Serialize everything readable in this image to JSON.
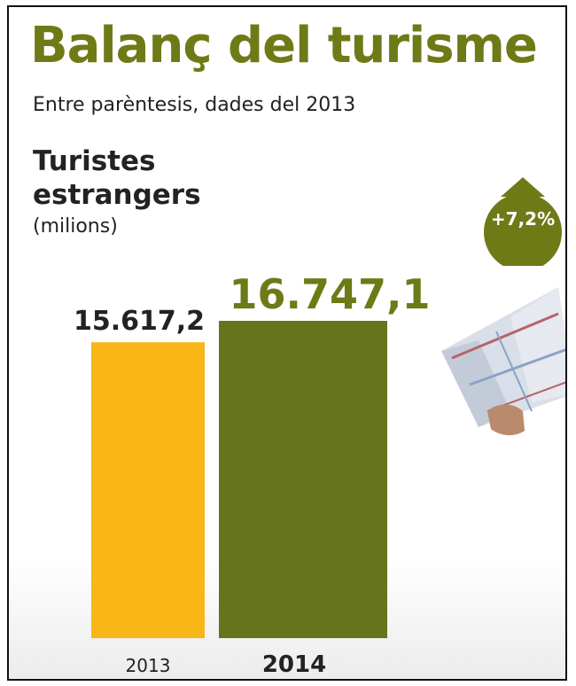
{
  "header": {
    "title": "Balanç del turisme",
    "subtitle": "Entre parèntesis, dades del 2013"
  },
  "badge": {
    "text": "+7,2%",
    "icon": "up-arrow-icon",
    "color": "#6e7a16"
  },
  "colors": {
    "bar_2013": "#f8b716",
    "bar_2014": "#66741c",
    "title": "#6e7a16"
  },
  "chart_data": {
    "type": "bar",
    "title": "Turistes estrangers",
    "unit_label": "(milions)",
    "categories": [
      "2013",
      "2014"
    ],
    "values": [
      15617.2,
      16747.1
    ],
    "value_labels": [
      "15.617,2",
      "16.747,1"
    ],
    "ylim": [
      0,
      16747.1
    ],
    "grid": false,
    "legend": "none"
  }
}
